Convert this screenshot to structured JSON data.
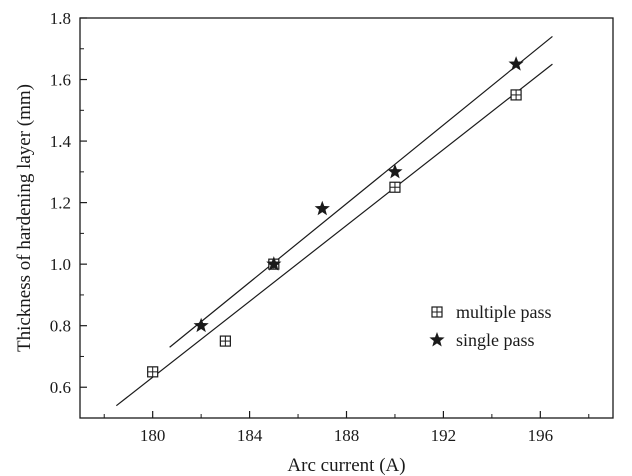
{
  "chart_data": {
    "type": "scatter",
    "title": "",
    "xlabel": "Arc current (A)",
    "ylabel": "Thickness of hardening layer (mm)",
    "xlim": [
      177,
      199
    ],
    "ylim": [
      0.5,
      1.8
    ],
    "xticks": [
      180,
      184,
      188,
      192,
      196
    ],
    "xtick_labels": [
      "180",
      "184",
      "188",
      "192",
      "196"
    ],
    "yticks": [
      0.6,
      0.8,
      1.0,
      1.2,
      1.4,
      1.6,
      1.8
    ],
    "ytick_labels": [
      "0.6",
      "0.8",
      "1.0",
      "1.2",
      "1.4",
      "1.6",
      "1.8"
    ],
    "grid": false,
    "legend_position": "lower-right",
    "series": [
      {
        "name": "multiple pass",
        "marker": "boxed-plus",
        "x": [
          180,
          183,
          185,
          190,
          195
        ],
        "y": [
          0.65,
          0.75,
          1.0,
          1.25,
          1.55
        ],
        "fit_line": {
          "x": [
            178.5,
            196.5
          ],
          "y": [
            0.54,
            1.65
          ]
        }
      },
      {
        "name": "single pass",
        "marker": "star",
        "x": [
          182,
          185,
          187,
          190,
          195
        ],
        "y": [
          0.8,
          1.0,
          1.18,
          1.3,
          1.65
        ],
        "fit_line": {
          "x": [
            180.7,
            196.5
          ],
          "y": [
            0.73,
            1.74
          ]
        }
      }
    ],
    "colors": {
      "ink": "#1a1a1a"
    }
  }
}
